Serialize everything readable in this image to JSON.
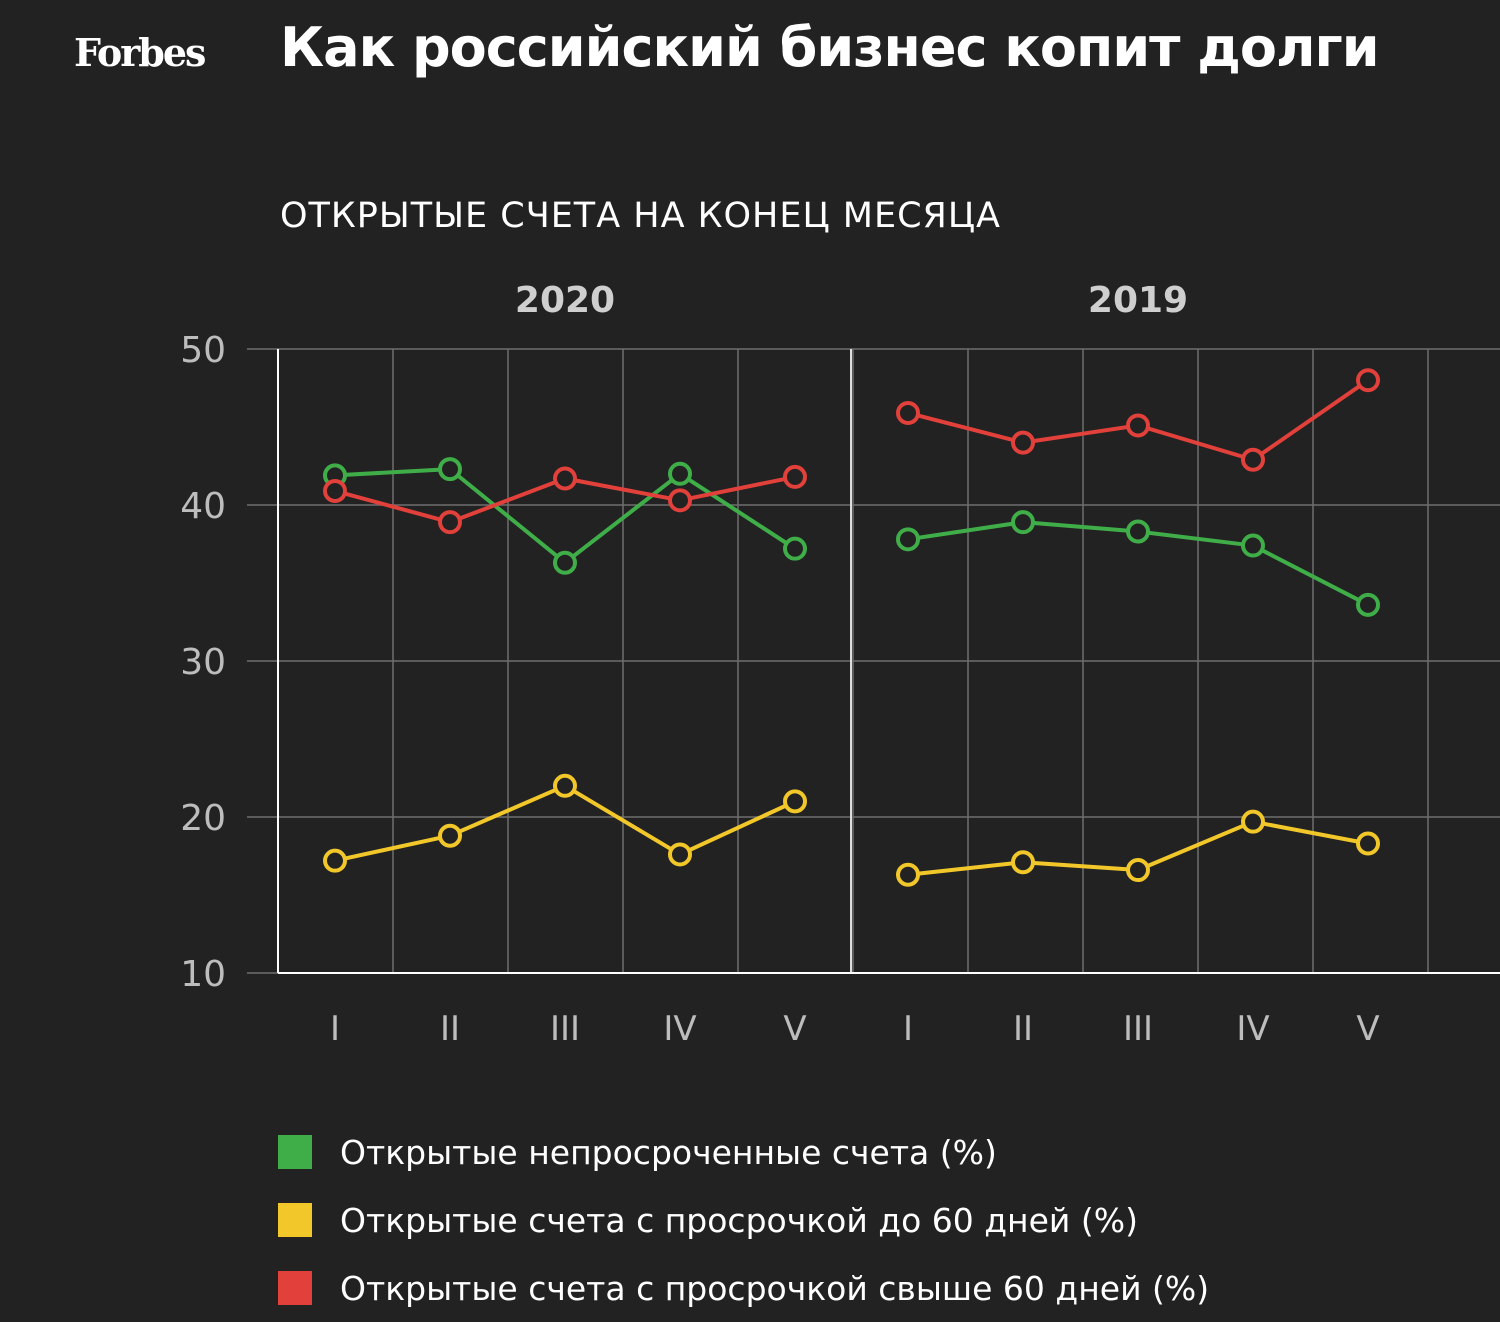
{
  "header": {
    "logo": "Forbes",
    "title": "Как российский бизнес копит долги",
    "subtitle": "ОТКРЫТЫЕ СЧЕТА НА КОНЕЦ МЕСЯЦА"
  },
  "chart_data": {
    "type": "line",
    "panels": [
      {
        "label": "2020",
        "categories": [
          "I",
          "II",
          "III",
          "IV",
          "V"
        ],
        "series": [
          {
            "name": "Открытые непросроченные счета (%)",
            "color": "#3fae49",
            "values": [
              41.9,
              42.3,
              36.3,
              42.0,
              37.2
            ]
          },
          {
            "name": "Открытые счета с просрочкой до 60 дней (%)",
            "color": "#f2c72a",
            "values": [
              17.2,
              18.8,
              22.0,
              17.6,
              21.0
            ]
          },
          {
            "name": "Открытые счета с просрочкой свыше 60 дней (%)",
            "color": "#e2403a",
            "values": [
              40.9,
              38.9,
              41.7,
              40.3,
              41.8
            ]
          }
        ]
      },
      {
        "label": "2019",
        "categories": [
          "I",
          "II",
          "III",
          "IV",
          "V"
        ],
        "series": [
          {
            "name": "Открытые непросроченные счета (%)",
            "color": "#3fae49",
            "values": [
              37.8,
              38.9,
              38.3,
              37.4,
              33.6
            ]
          },
          {
            "name": "Открытые счета с просрочкой до 60 дней (%)",
            "color": "#f2c72a",
            "values": [
              16.3,
              17.1,
              16.6,
              19.7,
              18.3
            ]
          },
          {
            "name": "Открытые счета с просрочкой свыше 60 дней (%)",
            "color": "#e2403a",
            "values": [
              45.9,
              44.0,
              45.1,
              42.9,
              48.0
            ]
          }
        ]
      }
    ],
    "ylim": [
      10,
      50
    ],
    "yticks": [
      10,
      20,
      30,
      40,
      50
    ],
    "grid": true,
    "legend_position": "bottom",
    "legend": [
      {
        "label": "Открытые непросроченные счета (%)",
        "color": "#3fae49"
      },
      {
        "label": "Открытые счета с просрочкой до 60 дней (%)",
        "color": "#f2c72a"
      },
      {
        "label": "Открытые счета с просрочкой свыше 60 дней (%)",
        "color": "#e2403a"
      }
    ]
  }
}
